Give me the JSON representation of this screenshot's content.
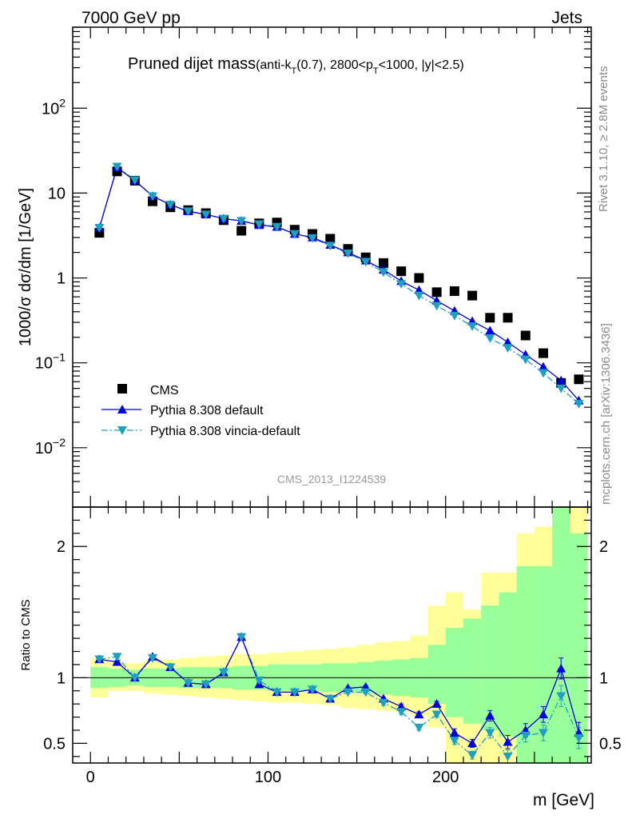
{
  "header": {
    "left": "7000 GeV pp",
    "right": "Jets"
  },
  "side_labels": {
    "rivet": "Rivet 3.1.10, ≥ 2.8M events",
    "mcplots": "mcplots.cern.ch [arXiv:1306.3436]"
  },
  "watermark": "CMS_2013_I1224539",
  "title": {
    "main": "Pruned dijet mass",
    "sub_pre": "(anti-k",
    "sub_t": "T",
    "sub_mid": "(0.7), 2800<p",
    "sub_t2": "T",
    "sub_post": "<1000, |y|<2.5)"
  },
  "colors": {
    "cms": "#000000",
    "default": "#0000dd",
    "vincia": "#1fa0c0",
    "band_inner": "#99ff99",
    "band_outer": "#ffff99"
  },
  "chart_data": {
    "type": "line",
    "xlabel": "m [GeV]",
    "xlim": [
      -10,
      282
    ],
    "xticks": [
      0,
      100,
      200
    ],
    "main_panel": {
      "ylabel": "1000/σ dσ/dm [1/GeV]",
      "yscale": "log",
      "ylim": [
        0.002,
        900
      ],
      "yticks": [
        {
          "value": 0.01,
          "base": "10",
          "exp": "−2"
        },
        {
          "value": 0.1,
          "base": "10",
          "exp": "−1"
        },
        {
          "value": 1,
          "base": "1",
          "exp": ""
        },
        {
          "value": 10,
          "base": "10",
          "exp": ""
        },
        {
          "value": 100,
          "base": "10",
          "exp": "2"
        }
      ]
    },
    "ratio_panel": {
      "ylabel": "Ratio to CMS",
      "ylim": [
        0.35,
        2.3
      ],
      "yticks": [
        "0.5",
        "1",
        "2"
      ]
    },
    "x": [
      5,
      15,
      25,
      35,
      45,
      55,
      65,
      75,
      85,
      95,
      105,
      115,
      125,
      135,
      145,
      155,
      165,
      175,
      185,
      195,
      205,
      215,
      225,
      235,
      245,
      255,
      265,
      275
    ],
    "series": [
      {
        "name": "CMS",
        "marker": "square",
        "values": [
          3.4,
          18.0,
          14.0,
          8.0,
          6.8,
          6.3,
          5.8,
          4.8,
          3.6,
          4.4,
          4.5,
          3.7,
          3.3,
          2.9,
          2.2,
          1.75,
          1.5,
          1.2,
          1.0,
          0.68,
          0.7,
          0.62,
          0.34,
          0.34,
          0.21,
          0.13,
          0.058,
          0.064
        ]
      },
      {
        "name": "Pythia 8.308 default",
        "marker": "triangle-up",
        "line": "solid",
        "values": [
          3.9,
          20.0,
          14.0,
          9.2,
          7.3,
          6.1,
          5.6,
          5.0,
          4.7,
          4.2,
          4.0,
          3.3,
          3.0,
          2.45,
          2.0,
          1.6,
          1.25,
          0.92,
          0.72,
          0.54,
          0.41,
          0.31,
          0.24,
          0.175,
          0.125,
          0.09,
          0.062,
          0.036
        ]
      },
      {
        "name": "Pythia 8.308 vincia-default",
        "marker": "triangle-down",
        "line": "dashdot",
        "values": [
          3.9,
          20.5,
          14.2,
          9.2,
          7.3,
          6.1,
          5.6,
          5.0,
          4.7,
          4.3,
          4.0,
          3.3,
          2.95,
          2.4,
          1.95,
          1.55,
          1.17,
          0.85,
          0.62,
          0.47,
          0.36,
          0.27,
          0.195,
          0.15,
          0.11,
          0.076,
          0.05,
          0.033
        ]
      }
    ],
    "ratio": [
      {
        "name": "Pythia 8.308 default",
        "values": [
          1.14,
          1.12,
          1.0,
          1.16,
          1.08,
          0.96,
          0.95,
          1.04,
          1.31,
          0.95,
          0.89,
          0.89,
          0.91,
          0.84,
          0.92,
          0.93,
          0.84,
          0.78,
          0.72,
          0.8,
          0.58,
          0.5,
          0.71,
          0.51,
          0.6,
          0.72,
          1.07,
          0.58
        ],
        "errors": [
          0.01,
          0.01,
          0.01,
          0.01,
          0.01,
          0.01,
          0.01,
          0.01,
          0.01,
          0.01,
          0.01,
          0.01,
          0.01,
          0.01,
          0.01,
          0.01,
          0.01,
          0.02,
          0.02,
          0.02,
          0.03,
          0.03,
          0.04,
          0.05,
          0.05,
          0.06,
          0.08,
          0.08
        ]
      },
      {
        "name": "Pythia 8.308 vincia-default",
        "values": [
          1.14,
          1.16,
          1.0,
          1.15,
          1.08,
          0.96,
          0.95,
          1.04,
          1.31,
          0.98,
          0.89,
          0.89,
          0.91,
          0.84,
          0.89,
          0.89,
          0.81,
          0.74,
          0.62,
          0.72,
          0.52,
          0.41,
          0.58,
          0.4,
          0.56,
          0.58,
          0.86,
          0.54
        ],
        "errors": [
          0.01,
          0.01,
          0.01,
          0.01,
          0.01,
          0.01,
          0.01,
          0.01,
          0.01,
          0.01,
          0.01,
          0.01,
          0.01,
          0.01,
          0.01,
          0.01,
          0.02,
          0.02,
          0.02,
          0.02,
          0.03,
          0.03,
          0.04,
          0.05,
          0.05,
          0.06,
          0.08,
          0.08
        ]
      }
    ],
    "bands": {
      "inner_lo": [
        0.92,
        0.93,
        0.94,
        0.93,
        0.93,
        0.92,
        0.92,
        0.92,
        0.91,
        0.91,
        0.9,
        0.9,
        0.9,
        0.89,
        0.89,
        0.88,
        0.87,
        0.86,
        0.85,
        0.8,
        0.7,
        0.65,
        0.6,
        0.55,
        0.35,
        0.35,
        0.35,
        0.35
      ],
      "inner_hi": [
        1.08,
        1.07,
        1.06,
        1.07,
        1.07,
        1.08,
        1.08,
        1.08,
        1.09,
        1.09,
        1.1,
        1.1,
        1.1,
        1.11,
        1.11,
        1.12,
        1.13,
        1.14,
        1.15,
        1.25,
        1.38,
        1.45,
        1.55,
        1.65,
        1.85,
        1.85,
        2.3,
        2.1
      ],
      "outer_lo": [
        0.85,
        0.9,
        0.9,
        0.88,
        0.87,
        0.86,
        0.85,
        0.84,
        0.83,
        0.82,
        0.81,
        0.81,
        0.8,
        0.79,
        0.77,
        0.76,
        0.75,
        0.74,
        0.71,
        0.62,
        0.35,
        0.35,
        0.35,
        0.35,
        0.35,
        0.35,
        0.35,
        0.35
      ],
      "outer_hi": [
        1.15,
        1.12,
        1.11,
        1.13,
        1.14,
        1.15,
        1.16,
        1.17,
        1.18,
        1.18,
        1.19,
        1.2,
        1.21,
        1.22,
        1.23,
        1.25,
        1.27,
        1.28,
        1.32,
        1.55,
        1.65,
        1.52,
        1.8,
        1.8,
        2.1,
        2.15,
        2.3,
        2.3
      ]
    }
  }
}
